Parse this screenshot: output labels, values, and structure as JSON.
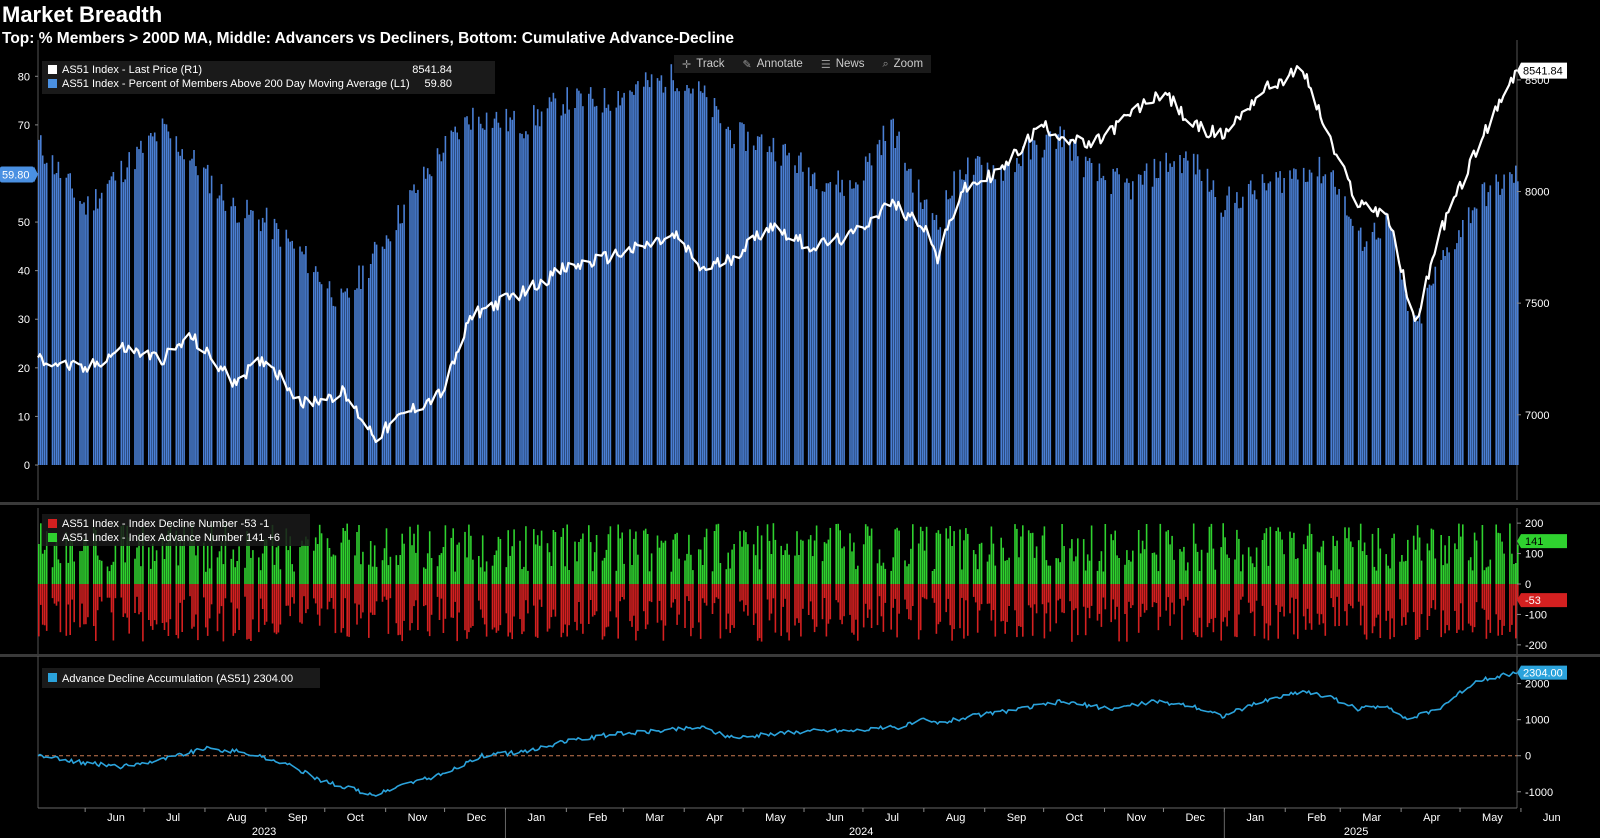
{
  "header": {
    "title": "Market Breadth",
    "subtitle": "Top: % Members > 200D MA, Middle: Advancers vs Decliners, Bottom: Cumulative Advance-Decline"
  },
  "toolbar": {
    "items": [
      {
        "label": "Track",
        "icon": "crosshair-icon"
      },
      {
        "label": "Annotate",
        "icon": "pencil-icon"
      },
      {
        "label": "News",
        "icon": "news-icon"
      },
      {
        "label": "Zoom",
        "icon": "magnifier-icon"
      }
    ]
  },
  "colors": {
    "bars_blue": "#4a7fd4",
    "price_line": "#ffffff",
    "advance": "#2fd12f",
    "decline": "#d42020",
    "ad_line": "#2ba3dc",
    "tag_price": "#ffffff",
    "tag_pct": "#4a90e2"
  },
  "chart_data": [
    {
      "type": "bar",
      "panel": "top",
      "legend": [
        {
          "label": "AS51 Index - Last Price (R1)",
          "value": "8541.84",
          "color": "#ffffff"
        },
        {
          "label": "AS51 Index - Percent of Members Above 200 Day Moving Average (L1)",
          "value": "59.80",
          "color": "#4a90e2"
        }
      ],
      "left_axis": {
        "ticks": [
          "0",
          "10",
          "20",
          "30",
          "40",
          "50",
          "60",
          "70",
          "80"
        ],
        "range": [
          0,
          85
        ],
        "current_tag": "59.80"
      },
      "right_axis": {
        "ticks": [
          "7000",
          "7500",
          "8000",
          "8500"
        ],
        "range": [
          6775,
          8625
        ],
        "current_tag": "8541.84"
      },
      "time_range": [
        "2023-05-08",
        "2025-05-30"
      ],
      "pct_above_200dma": {
        "dates": [
          "2023-05-08",
          "2023-06-01",
          "2023-06-20",
          "2023-07-10",
          "2023-07-25",
          "2023-08-15",
          "2023-09-01",
          "2023-09-20",
          "2023-10-10",
          "2023-10-27",
          "2023-11-10",
          "2023-11-30",
          "2023-12-15",
          "2024-01-10",
          "2024-01-30",
          "2024-02-20",
          "2024-03-10",
          "2024-03-28",
          "2024-04-10",
          "2024-04-25",
          "2024-05-15",
          "2024-06-05",
          "2024-06-25",
          "2024-07-15",
          "2024-08-01",
          "2024-08-08",
          "2024-08-20",
          "2024-09-10",
          "2024-09-30",
          "2024-10-10",
          "2024-10-25",
          "2024-11-15",
          "2024-12-01",
          "2024-12-15",
          "2024-12-31",
          "2025-01-20",
          "2025-02-10",
          "2025-02-25",
          "2025-03-10",
          "2025-03-25",
          "2025-04-04",
          "2025-04-08",
          "2025-04-20",
          "2025-05-10",
          "2025-05-30"
        ],
        "values": [
          66,
          53,
          61,
          69,
          63,
          53,
          50,
          43,
          33,
          44,
          53,
          65,
          72,
          70,
          75,
          75,
          78,
          80,
          76,
          68,
          66,
          60,
          57,
          70,
          53,
          51,
          61,
          61,
          66,
          68,
          60,
          57,
          62,
          63,
          54,
          57,
          61,
          60,
          46,
          50,
          33,
          28,
          41,
          55,
          59.8
        ]
      },
      "last_price": {
        "dates": [
          "2023-05-08",
          "2023-06-01",
          "2023-06-20",
          "2023-07-10",
          "2023-07-25",
          "2023-08-15",
          "2023-09-01",
          "2023-09-20",
          "2023-10-10",
          "2023-10-27",
          "2023-11-10",
          "2023-11-30",
          "2023-12-15",
          "2024-01-10",
          "2024-01-30",
          "2024-02-20",
          "2024-03-10",
          "2024-03-28",
          "2024-04-10",
          "2024-04-25",
          "2024-05-15",
          "2024-06-05",
          "2024-06-25",
          "2024-07-15",
          "2024-08-01",
          "2024-08-08",
          "2024-08-20",
          "2024-09-10",
          "2024-09-30",
          "2024-10-10",
          "2024-10-25",
          "2024-11-15",
          "2024-12-01",
          "2024-12-15",
          "2024-12-31",
          "2025-01-20",
          "2025-02-10",
          "2025-02-25",
          "2025-03-10",
          "2025-03-25",
          "2025-04-04",
          "2025-04-08",
          "2025-04-20",
          "2025-05-10",
          "2025-05-30"
        ],
        "values": [
          7250,
          7200,
          7300,
          7250,
          7350,
          7150,
          7250,
          7050,
          7100,
          6900,
          7000,
          7100,
          7450,
          7550,
          7650,
          7700,
          7750,
          7800,
          7650,
          7700,
          7850,
          7750,
          7800,
          7950,
          7850,
          7700,
          8000,
          8100,
          8300,
          8250,
          8200,
          8350,
          8450,
          8300,
          8250,
          8450,
          8550,
          8200,
          7950,
          7900,
          7550,
          7400,
          7800,
          8200,
          8541.84
        ]
      }
    },
    {
      "type": "bar",
      "panel": "middle",
      "legend": [
        {
          "label": "AS51 Index - Index Decline Number",
          "value": "-53",
          "change": "-1",
          "color": "#d42020"
        },
        {
          "label": "AS51 Index - Index Advance Number",
          "value": "141",
          "change": "+6",
          "color": "#2fd12f"
        }
      ],
      "right_axis": {
        "ticks": [
          "200",
          "100",
          "0",
          "-100",
          "-200"
        ],
        "range": [
          -230,
          230
        ]
      },
      "current_tags": [
        {
          "value": "141",
          "series": "advance"
        },
        {
          "value": "-53",
          "series": "decline"
        }
      ],
      "advance_typical_range": [
        40,
        200
      ],
      "decline_typical_range": [
        -40,
        -190
      ]
    },
    {
      "type": "line",
      "panel": "bottom",
      "legend": [
        {
          "label": "Advance Decline Accumulation (AS51)",
          "value": "2304.00",
          "color": "#2ba3dc"
        }
      ],
      "right_axis": {
        "ticks": [
          "2000",
          "1000",
          "0",
          "-1000"
        ],
        "range": [
          -1450,
          2600
        ],
        "current_tag": "2304.00"
      },
      "series": {
        "name": "Advance Decline Accumulation (AS51)",
        "dates": [
          "2023-05-08",
          "2023-06-01",
          "2023-06-20",
          "2023-07-10",
          "2023-08-01",
          "2023-08-20",
          "2023-09-10",
          "2023-09-30",
          "2023-10-20",
          "2023-10-27",
          "2023-11-10",
          "2023-12-01",
          "2023-12-20",
          "2024-01-10",
          "2024-02-01",
          "2024-02-25",
          "2024-03-20",
          "2024-04-10",
          "2024-04-25",
          "2024-05-15",
          "2024-06-05",
          "2024-06-25",
          "2024-07-20",
          "2024-08-01",
          "2024-08-08",
          "2024-08-25",
          "2024-09-20",
          "2024-10-10",
          "2024-11-05",
          "2024-11-25",
          "2024-12-15",
          "2024-12-31",
          "2025-01-20",
          "2025-02-10",
          "2025-02-25",
          "2025-03-10",
          "2025-03-25",
          "2025-04-04",
          "2025-04-20",
          "2025-05-10",
          "2025-05-30"
        ],
        "values": [
          0,
          -200,
          -300,
          -100,
          200,
          100,
          -200,
          -700,
          -1000,
          -1100,
          -800,
          -500,
          0,
          100,
          400,
          600,
          700,
          800,
          500,
          600,
          700,
          700,
          800,
          1000,
          900,
          1100,
          1300,
          1500,
          1300,
          1500,
          1400,
          1100,
          1500,
          1800,
          1600,
          1300,
          1400,
          1000,
          1300,
          2100,
          2304
        ]
      },
      "zero_line": 0
    }
  ],
  "x_axis": {
    "months": [
      {
        "label": "Jun",
        "date": "2023-06-01"
      },
      {
        "label": "Jul",
        "date": "2023-07-01"
      },
      {
        "label": "Aug",
        "date": "2023-08-01"
      },
      {
        "label": "Sep",
        "date": "2023-09-01"
      },
      {
        "label": "Oct",
        "date": "2023-10-01"
      },
      {
        "label": "Nov",
        "date": "2023-11-01"
      },
      {
        "label": "Dec",
        "date": "2023-12-01"
      },
      {
        "label": "Jan",
        "date": "2024-01-01"
      },
      {
        "label": "Feb",
        "date": "2024-02-01"
      },
      {
        "label": "Mar",
        "date": "2024-03-01"
      },
      {
        "label": "Apr",
        "date": "2024-04-01"
      },
      {
        "label": "May",
        "date": "2024-05-01"
      },
      {
        "label": "Jun",
        "date": "2024-06-01"
      },
      {
        "label": "Jul",
        "date": "2024-07-01"
      },
      {
        "label": "Aug",
        "date": "2024-08-01"
      },
      {
        "label": "Sep",
        "date": "2024-09-01"
      },
      {
        "label": "Oct",
        "date": "2024-10-01"
      },
      {
        "label": "Nov",
        "date": "2024-11-01"
      },
      {
        "label": "Dec",
        "date": "2024-12-01"
      },
      {
        "label": "Jan",
        "date": "2025-01-01"
      },
      {
        "label": "Feb",
        "date": "2025-02-01"
      },
      {
        "label": "Mar",
        "date": "2025-03-01"
      },
      {
        "label": "Apr",
        "date": "2025-04-01"
      },
      {
        "label": "May",
        "date": "2025-05-01"
      },
      {
        "label": "Jun",
        "date": "2025-06-01"
      }
    ],
    "years": [
      {
        "label": "2023",
        "date": "2023-09-01"
      },
      {
        "label": "2024",
        "date": "2024-07-01"
      },
      {
        "label": "2025",
        "date": "2025-03-10"
      }
    ]
  }
}
